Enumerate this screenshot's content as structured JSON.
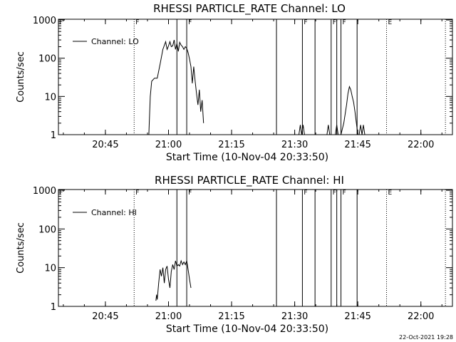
{
  "footer_timestamp": "22-Oct-2021 19:28",
  "chart_data": [
    {
      "type": "line",
      "title": "RHESSI PARTICLE_RATE Channel: LO",
      "xlabel": "Start Time (10-Nov-04 20:33:50)",
      "ylabel": "Counts/sec",
      "yscale": "log",
      "ylim": [
        1,
        1000
      ],
      "xlim": [
        "20:33:50",
        "22:07:30"
      ],
      "x_ticks": [
        "20:45",
        "21:00",
        "21:15",
        "21:30",
        "21:45",
        "22:00"
      ],
      "y_ticks": [
        "1",
        "10",
        "100",
        "1000"
      ],
      "legend": {
        "position": "top-left",
        "entries": [
          "Channel: LO"
        ]
      },
      "flag_lines": [
        {
          "time": "20:51:50",
          "style": "dotted",
          "label": "F"
        },
        {
          "time": "21:02:00",
          "style": "solid",
          "label": ""
        },
        {
          "time": "21:04:20",
          "style": "solid",
          "label": "F"
        },
        {
          "time": "21:25:40",
          "style": "solid",
          "label": ""
        },
        {
          "time": "21:31:50",
          "style": "solid",
          "label": "F"
        },
        {
          "time": "21:34:50",
          "style": "solid",
          "label": ""
        },
        {
          "time": "21:38:40",
          "style": "solid",
          "label": "F"
        },
        {
          "time": "21:40:00",
          "style": "solid",
          "label": ""
        },
        {
          "time": "21:41:00",
          "style": "solid",
          "label": "F"
        },
        {
          "time": "21:44:50",
          "style": "solid",
          "label": ""
        },
        {
          "time": "21:51:50",
          "style": "dotted",
          "label": "E"
        },
        {
          "time": "22:05:50",
          "style": "dotted",
          "label": ""
        }
      ],
      "series": [
        {
          "name": "Channel: LO",
          "segments": [
            [
              [
                "20:55:20",
                1
              ],
              [
                "20:55:40",
                10
              ],
              [
                "20:56:00",
                25
              ],
              [
                "20:56:40",
                30
              ],
              [
                "20:57:20",
                30
              ],
              [
                "20:58:00",
                70
              ],
              [
                "20:58:40",
                170
              ],
              [
                "20:59:20",
                270
              ],
              [
                "20:59:40",
                170
              ],
              [
                "21:00:00",
                210
              ],
              [
                "21:00:20",
                270
              ],
              [
                "21:00:40",
                200
              ],
              [
                "21:01:00",
                210
              ],
              [
                "21:01:20",
                300
              ],
              [
                "21:01:40",
                170
              ],
              [
                "21:02:00",
                240
              ],
              [
                "21:02:20",
                150
              ],
              [
                "21:02:40",
                260
              ],
              [
                "21:03:00",
                220
              ],
              [
                "21:03:20",
                200
              ],
              [
                "21:03:40",
                170
              ],
              [
                "21:04:00",
                200
              ],
              [
                "21:04:20",
                180
              ],
              [
                "21:04:40",
                140
              ],
              [
                "21:05:00",
                95
              ],
              [
                "21:05:20",
                60
              ],
              [
                "21:05:40",
                22
              ],
              [
                "21:06:00",
                60
              ],
              [
                "21:06:20",
                25
              ],
              [
                "21:06:40",
                12
              ],
              [
                "21:07:00",
                6
              ],
              [
                "21:07:20",
                15
              ],
              [
                "21:07:40",
                4
              ],
              [
                "21:08:00",
                8
              ],
              [
                "21:08:20",
                2
              ]
            ],
            [
              [
                "21:31:00",
                1
              ],
              [
                "21:31:20",
                1.8
              ],
              [
                "21:31:40",
                1
              ],
              [
                "21:32:00",
                1.8
              ],
              [
                "21:32:20",
                1
              ]
            ],
            [
              [
                "21:37:40",
                1
              ],
              [
                "21:38:00",
                1.8
              ],
              [
                "21:38:20",
                1
              ]
            ],
            [
              [
                "21:39:40",
                1
              ],
              [
                "21:40:00",
                1.8
              ],
              [
                "21:40:20",
                1
              ]
            ],
            [
              [
                "21:41:00",
                1
              ],
              [
                "21:41:40",
                2
              ],
              [
                "21:42:20",
                6
              ],
              [
                "21:42:40",
                12
              ],
              [
                "21:43:00",
                18
              ],
              [
                "21:43:20",
                15
              ],
              [
                "21:43:40",
                10
              ],
              [
                "21:44:00",
                7
              ],
              [
                "21:44:20",
                4
              ],
              [
                "21:44:40",
                2
              ],
              [
                "21:45:00",
                1
              ]
            ],
            [
              [
                "21:45:20",
                1
              ],
              [
                "21:45:40",
                1.8
              ],
              [
                "21:46:00",
                1
              ],
              [
                "21:46:20",
                1.8
              ],
              [
                "21:46:40",
                1
              ]
            ]
          ]
        }
      ]
    },
    {
      "type": "line",
      "title": "RHESSI PARTICLE_RATE Channel: HI",
      "xlabel": "Start Time (10-Nov-04 20:33:50)",
      "ylabel": "Counts/sec",
      "yscale": "log",
      "ylim": [
        1,
        1000
      ],
      "xlim": [
        "20:33:50",
        "22:07:30"
      ],
      "x_ticks": [
        "20:45",
        "21:00",
        "21:15",
        "21:30",
        "21:45",
        "22:00"
      ],
      "y_ticks": [
        "1",
        "10",
        "100",
        "1000"
      ],
      "legend": {
        "position": "top-left",
        "entries": [
          "Channel: HI"
        ]
      },
      "flag_lines": [
        {
          "time": "20:51:50",
          "style": "dotted",
          "label": "F"
        },
        {
          "time": "21:02:00",
          "style": "solid",
          "label": ""
        },
        {
          "time": "21:04:20",
          "style": "solid",
          "label": "F"
        },
        {
          "time": "21:25:40",
          "style": "solid",
          "label": ""
        },
        {
          "time": "21:31:50",
          "style": "solid",
          "label": "F"
        },
        {
          "time": "21:34:50",
          "style": "solid",
          "label": ""
        },
        {
          "time": "21:38:40",
          "style": "solid",
          "label": "F"
        },
        {
          "time": "21:40:00",
          "style": "solid",
          "label": ""
        },
        {
          "time": "21:41:00",
          "style": "solid",
          "label": "F"
        },
        {
          "time": "21:44:50",
          "style": "solid",
          "label": ""
        },
        {
          "time": "21:51:50",
          "style": "dotted",
          "label": "E"
        },
        {
          "time": "22:05:50",
          "style": "dotted",
          "label": ""
        }
      ],
      "series": [
        {
          "name": "Channel: HI",
          "segments": [
            [
              [
                "20:57:00",
                1.4
              ],
              [
                "20:57:10",
                2
              ],
              [
                "20:57:20",
                1.5
              ],
              [
                "20:57:40",
                4
              ],
              [
                "20:58:00",
                9
              ],
              [
                "20:58:20",
                6
              ],
              [
                "20:58:40",
                10
              ],
              [
                "20:59:00",
                4
              ],
              [
                "20:59:20",
                9
              ],
              [
                "20:59:40",
                11
              ],
              [
                "21:00:00",
                5
              ],
              [
                "21:00:20",
                3
              ],
              [
                "21:00:40",
                8
              ],
              [
                "21:01:00",
                12
              ],
              [
                "21:01:20",
                9
              ],
              [
                "21:01:40",
                15
              ],
              [
                "21:02:00",
                11
              ],
              [
                "21:02:20",
                12
              ],
              [
                "21:02:40",
                11
              ],
              [
                "21:03:00",
                15
              ],
              [
                "21:03:20",
                12
              ],
              [
                "21:03:40",
                14
              ],
              [
                "21:04:00",
                12
              ],
              [
                "21:04:20",
                15
              ],
              [
                "21:04:40",
                9
              ],
              [
                "21:05:00",
                5
              ],
              [
                "21:05:20",
                3
              ]
            ]
          ]
        }
      ]
    }
  ]
}
